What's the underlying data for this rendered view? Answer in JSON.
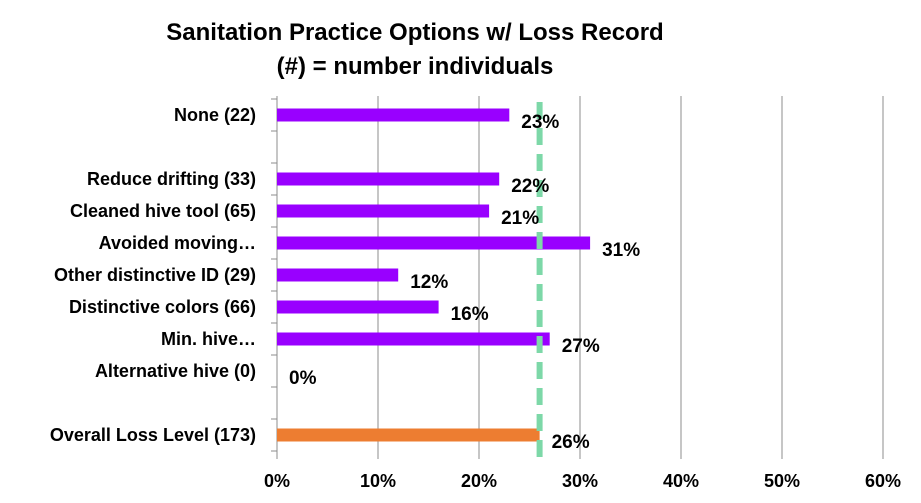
{
  "chart_data": {
    "type": "bar",
    "orientation": "horizontal",
    "title": "Sanitation Practice Options w/ Loss Record",
    "subtitle": "(#) = number individuals",
    "categories": [
      "None (22)",
      "",
      "Reduce drifting (33)",
      "Cleaned hive tool (65)",
      "Avoided moving…",
      "Other distinctive ID (29)",
      "Distinctive colors (66)",
      "Min. hive…",
      "Alternative hive (0)",
      "",
      "Overall Loss Level (173)"
    ],
    "values": [
      23,
      null,
      22,
      21,
      31,
      12,
      16,
      27,
      0,
      null,
      26
    ],
    "value_labels": [
      "23%",
      "",
      "22%",
      "21%",
      "31%",
      "12%",
      "16%",
      "27%",
      "0%",
      "",
      "26%"
    ],
    "bar_colors": [
      "#9900FF",
      null,
      "#9900FF",
      "#9900FF",
      "#9900FF",
      "#9900FF",
      "#9900FF",
      "#9900FF",
      "#9900FF",
      null,
      "#ED7D31"
    ],
    "xlim": [
      0,
      60
    ],
    "xticks": [
      "0%",
      "10%",
      "20%",
      "30%",
      "40%",
      "50%",
      "60%"
    ],
    "reference_line": {
      "value": 26,
      "style": "dashed",
      "color": "#7DD8A8"
    },
    "grid": "vertical",
    "legend": "none"
  }
}
